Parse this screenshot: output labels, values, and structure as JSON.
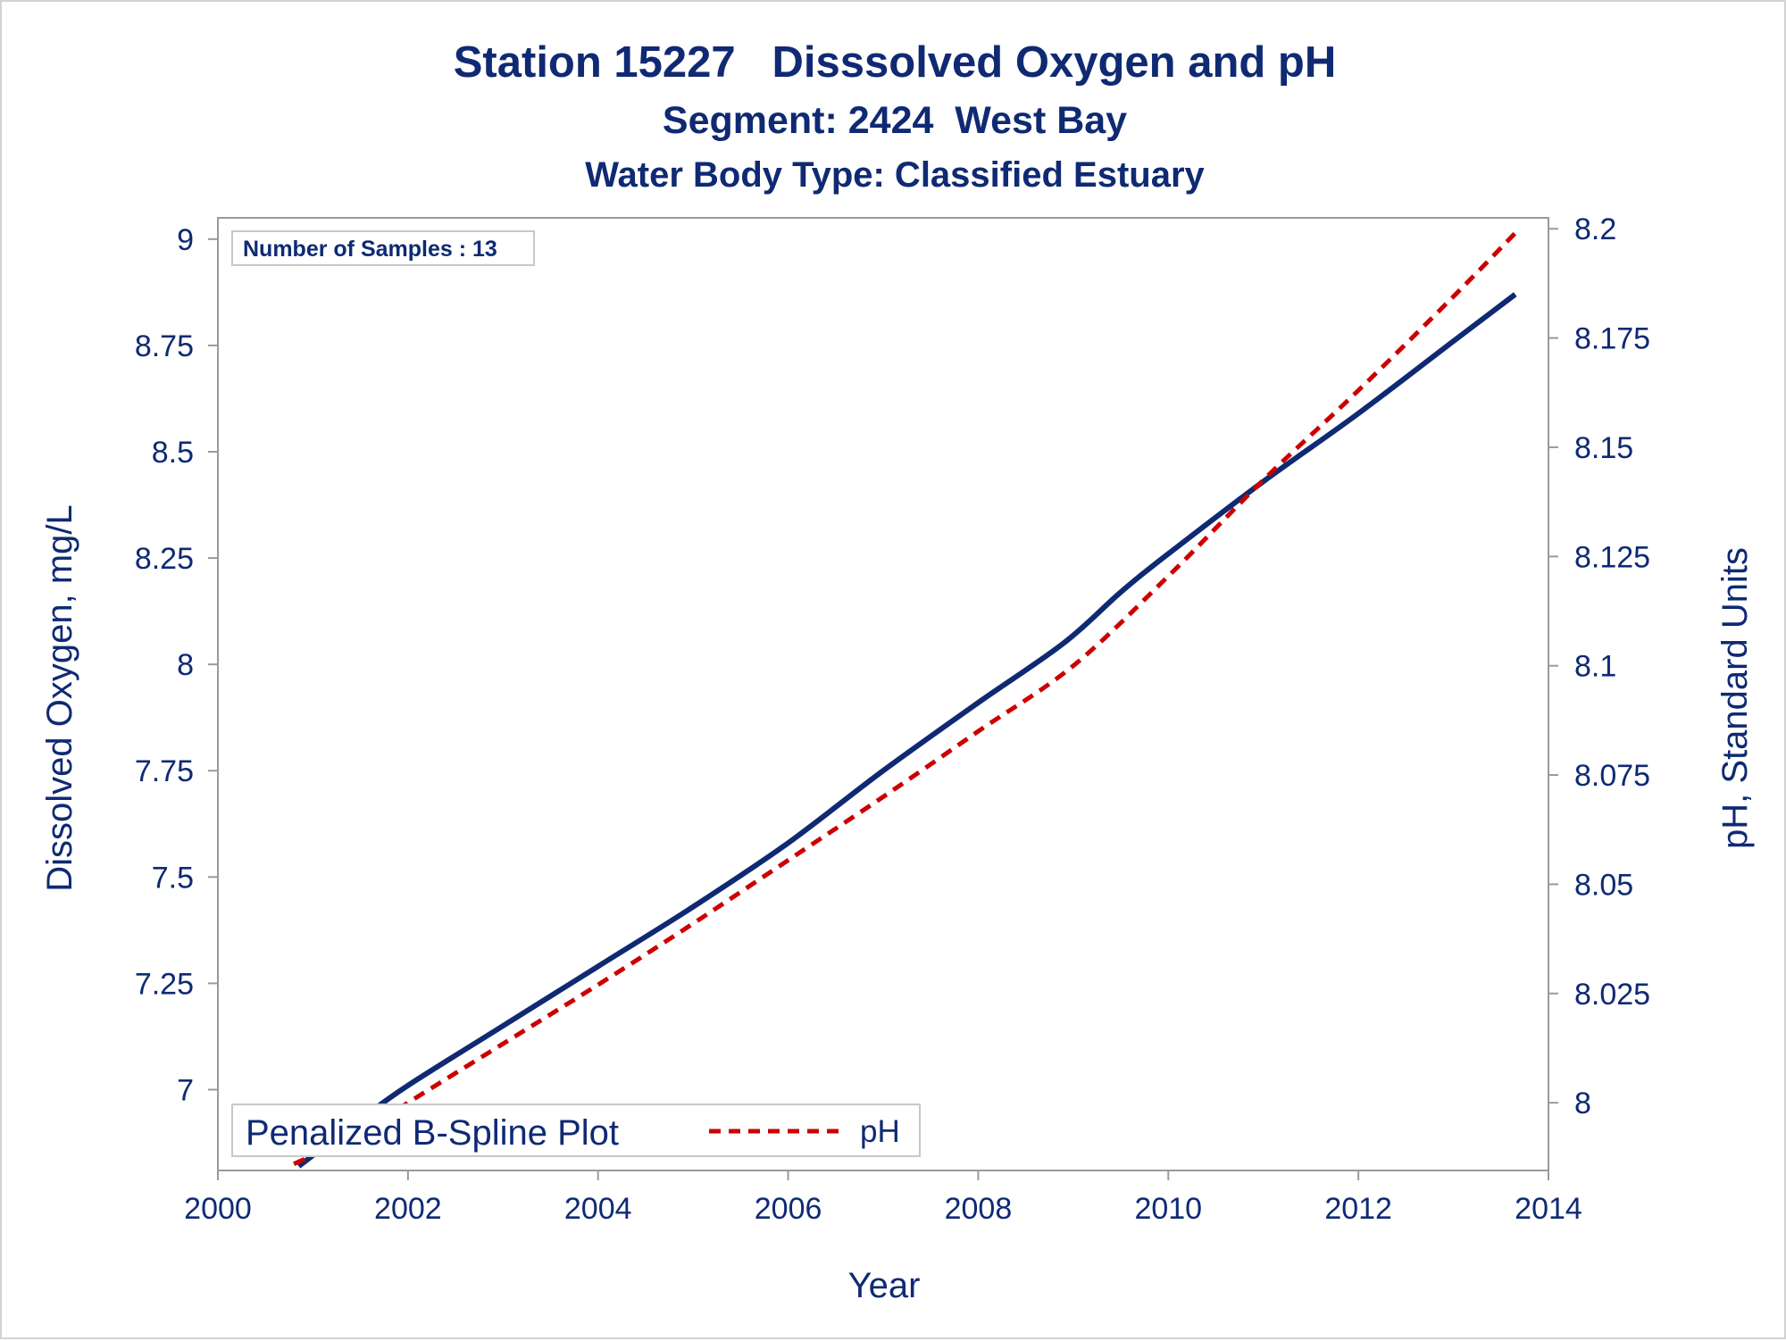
{
  "chart_data": {
    "type": "line",
    "title": "Station 15227   Disssolved Oxygen and pH",
    "subtitle": "Segment: 2424  West Bay",
    "subtitle2": "Water Body Type: Classified Estuary",
    "xlabel": "Year",
    "ylabel_left": "Dissolved Oxygen, mg/L",
    "ylabel_right": "pH, Standard Units",
    "xlim": [
      2000,
      2014
    ],
    "ylim_left": [
      6.81,
      9.05
    ],
    "ylim_right": [
      7.9845,
      8.2025
    ],
    "x_ticks": [
      2000,
      2002,
      2004,
      2006,
      2008,
      2010,
      2012,
      2014
    ],
    "y_left_ticks": [
      7,
      7.25,
      7.5,
      7.75,
      8,
      8.25,
      8.5,
      8.75,
      9
    ],
    "y_right_ticks": [
      8,
      8.025,
      8.05,
      8.075,
      8.1,
      8.125,
      8.15,
      8.175,
      8.2
    ],
    "annotation": "Number of Samples : 13",
    "legend": {
      "placement": "bottom-left",
      "title": "Penalized B-Spline Plot",
      "entries": [
        "pH"
      ]
    },
    "grid": false,
    "series": [
      {
        "axis": "left",
        "color": "#0f2a73",
        "style": "solid",
        "x": [
          2000.85,
          2001.5,
          2002.0,
          2003.0,
          2004.0,
          2005.0,
          2006.0,
          2007.0,
          2008.0,
          2008.9,
          2009.5,
          2010.0,
          2011.0,
          2012.0,
          2013.0,
          2013.65
        ],
        "y": [
          6.82,
          6.93,
          7.01,
          7.15,
          7.29,
          7.43,
          7.58,
          7.75,
          7.91,
          8.05,
          8.17,
          8.26,
          8.43,
          8.59,
          8.76,
          8.87
        ]
      },
      {
        "name": "pH",
        "axis": "right",
        "color": "#cc0000",
        "style": "dashed",
        "x": [
          2000.8,
          2001.5,
          2002.0,
          2003.0,
          2004.0,
          2005.0,
          2006.0,
          2007.0,
          2008.0,
          2009.0,
          2010.0,
          2011.0,
          2012.0,
          2013.0,
          2013.65
        ],
        "y": [
          7.986,
          7.993,
          8.0,
          8.0135,
          8.027,
          8.041,
          8.0555,
          8.07,
          8.085,
          8.1,
          8.1205,
          8.1425,
          8.163,
          8.1845,
          8.199
        ]
      }
    ]
  }
}
